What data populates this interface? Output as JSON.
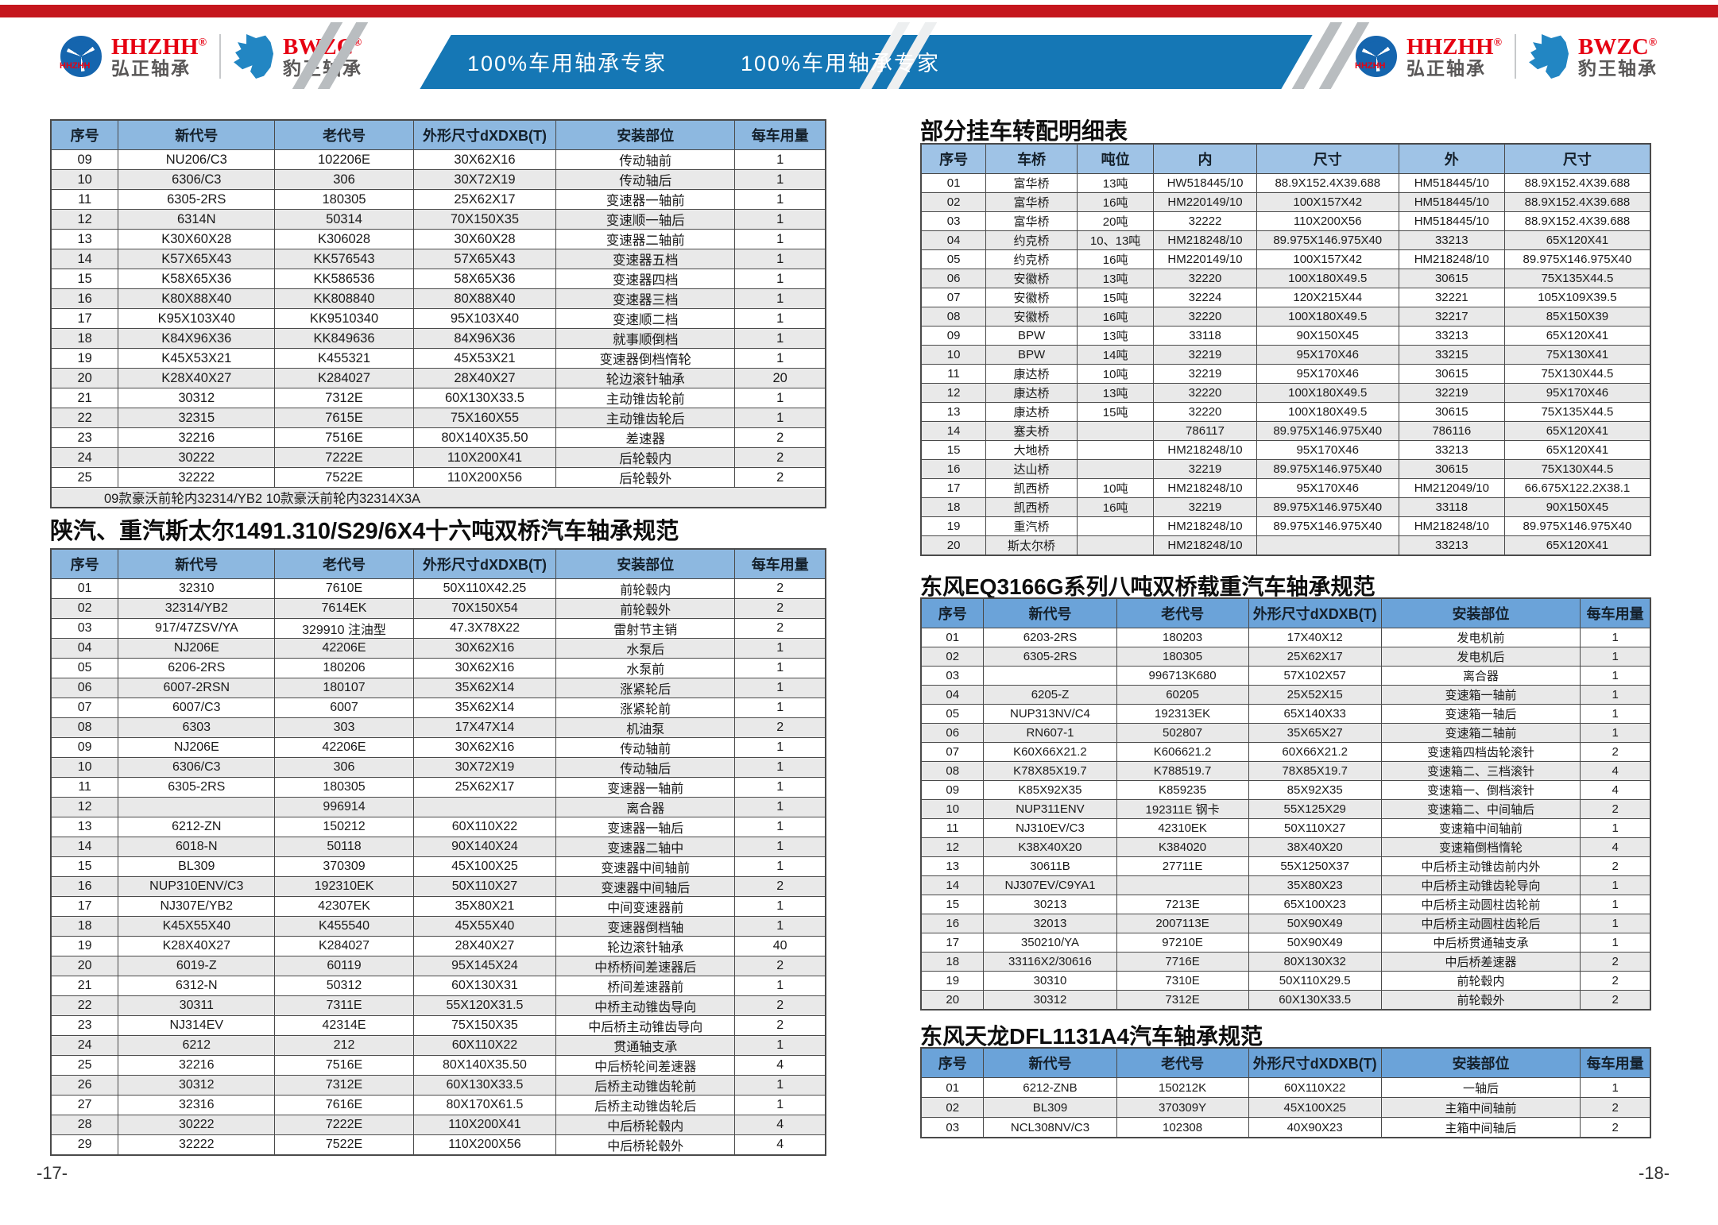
{
  "header": {
    "banner_text_left": "100%车用轴承专家",
    "banner_text_right": "100%车用轴承专家",
    "colors": {
      "red_bar": "#c5161d",
      "banner_blue": "#1577b5",
      "brand_red": "#e60012",
      "brand_gray": "#595757",
      "table_blue_light": "#8db8e0",
      "table_blue_trailer": "#9fc3e6",
      "table_blue_dark": "#6ba3d9"
    },
    "brands": [
      {
        "logo_text": "HHZHH",
        "name_en": "HHZHH",
        "reg": "®",
        "name_cn": "弘正轴承"
      },
      {
        "logo_text": "BWZC",
        "name_en": "BWZC",
        "reg": "®",
        "name_cn": "豹王轴承"
      }
    ]
  },
  "page_left": {
    "page_number": "-17-",
    "section_title": "陕汽、重汽斯太尔1491.310/S29/6X4十六吨双桥汽车轴承规范",
    "table_top": {
      "columns": [
        "序号",
        "新代号",
        "老代号",
        "外形尺寸dXDXB(T)",
        "安装部位",
        "每车用量"
      ],
      "widths": [
        8.7,
        20.2,
        17.9,
        18.4,
        23.1,
        11.7
      ],
      "header_bg": "#8db8e0",
      "footer_note": "09款豪沃前轮内32314/YB2  10款豪沃前轮内32314X3A",
      "rows": [
        [
          "09",
          "NU206/C3",
          "102206E",
          "30X62X16",
          "传动轴前",
          "1"
        ],
        [
          "10",
          "6306/C3",
          "306",
          "30X72X19",
          "传动轴后",
          "1"
        ],
        [
          "11",
          "6305-2RS",
          "180305",
          "25X62X17",
          "变速器一轴前",
          "1"
        ],
        [
          "12",
          "6314N",
          "50314",
          "70X150X35",
          "变速顺一轴后",
          "1"
        ],
        [
          "13",
          "K30X60X28",
          "K306028",
          "30X60X28",
          "变速器二轴前",
          "1"
        ],
        [
          "14",
          "K57X65X43",
          "KK576543",
          "57X65X43",
          "变速器五档",
          "1"
        ],
        [
          "15",
          "K58X65X36",
          "KK586536",
          "58X65X36",
          "变速器四档",
          "1"
        ],
        [
          "16",
          "K80X88X40",
          "KK808840",
          "80X88X40",
          "变速器三档",
          "1"
        ],
        [
          "17",
          "K95X103X40",
          "KK9510340",
          "95X103X40",
          "变速顺二档",
          "1"
        ],
        [
          "18",
          "K84X96X36",
          "KK849636",
          "84X96X36",
          "就事顺倒档",
          "1"
        ],
        [
          "19",
          "K45X53X21",
          "K455321",
          "45X53X21",
          "变速器倒档惰轮",
          "1"
        ],
        [
          "20",
          "K28X40X27",
          "K284027",
          "28X40X27",
          "轮边滚针轴承",
          "20"
        ],
        [
          "21",
          "30312",
          "7312E",
          "60X130X33.5",
          "主动锥齿轮前",
          "1"
        ],
        [
          "22",
          "32315",
          "7615E",
          "75X160X55",
          "主动锥齿轮后",
          "1"
        ],
        [
          "23",
          "32216",
          "7516E",
          "80X140X35.50",
          "差速器",
          "2"
        ],
        [
          "24",
          "30222",
          "7222E",
          "110X200X41",
          "后轮毂内",
          "2"
        ],
        [
          "25",
          "32222",
          "7522E",
          "110X200X56",
          "后轮毂外",
          "2"
        ]
      ]
    },
    "table_main": {
      "columns": [
        "序号",
        "新代号",
        "老代号",
        "外形尺寸dXDXB(T)",
        "安装部位",
        "每车用量"
      ],
      "widths": [
        8.7,
        20.2,
        17.9,
        18.4,
        23.1,
        11.7
      ],
      "header_bg": "#8db8e0",
      "rows": [
        [
          "01",
          "32310",
          "7610E",
          "50X110X42.25",
          "前轮毂内",
          "2"
        ],
        [
          "02",
          "32314/YB2",
          "7614EK",
          "70X150X54",
          "前轮毂外",
          "2"
        ],
        [
          "03",
          "917/47ZSV/YA",
          "329910 注油型",
          "47.3X78X22",
          "雷射节主销",
          "2"
        ],
        [
          "04",
          "NJ206E",
          "42206E",
          "30X62X16",
          "水泵后",
          "1"
        ],
        [
          "05",
          "6206-2RS",
          "180206",
          "30X62X16",
          "水泵前",
          "1"
        ],
        [
          "06",
          "6007-2RSN",
          "180107",
          "35X62X14",
          "涨紧轮后",
          "1"
        ],
        [
          "07",
          "6007/C3",
          "6007",
          "35X62X14",
          "涨紧轮前",
          "1"
        ],
        [
          "08",
          "6303",
          "303",
          "17X47X14",
          "机油泵",
          "2"
        ],
        [
          "09",
          "NJ206E",
          "42206E",
          "30X62X16",
          "传动轴前",
          "1"
        ],
        [
          "10",
          "6306/C3",
          "306",
          "30X72X19",
          "传动轴后",
          "1"
        ],
        [
          "11",
          "6305-2RS",
          "180305",
          "25X62X17",
          "变速器一轴前",
          "1"
        ],
        [
          "12",
          "",
          "996914",
          "",
          "离合器",
          "1"
        ],
        [
          "13",
          "6212-ZN",
          "150212",
          "60X110X22",
          "变速器一轴后",
          "1"
        ],
        [
          "14",
          "6018-N",
          "50118",
          "90X140X24",
          "变速器二轴中",
          "1"
        ],
        [
          "15",
          "BL309",
          "370309",
          "45X100X25",
          "变速器中间轴前",
          "1"
        ],
        [
          "16",
          "NUP310ENV/C3",
          "192310EK",
          "50X110X27",
          "变速器中间轴后",
          "2"
        ],
        [
          "17",
          "NJ307E/YB2",
          "42307EK",
          "35X80X21",
          "中间变速器前",
          "1"
        ],
        [
          "18",
          "K45X55X40",
          "K455540",
          "45X55X40",
          "变速器倒档轴",
          "1"
        ],
        [
          "19",
          "K28X40X27",
          "K284027",
          "28X40X27",
          "轮边滚针轴承",
          "40"
        ],
        [
          "20",
          "6019-Z",
          "60119",
          "95X145X24",
          "中桥桥间差速器后",
          "2"
        ],
        [
          "21",
          "6312-N",
          "50312",
          "60X130X31",
          "桥间差速器前",
          "1"
        ],
        [
          "22",
          "30311",
          "7311E",
          "55X120X31.5",
          "中桥主动锥齿导向",
          "2"
        ],
        [
          "23",
          "NJ314EV",
          "42314E",
          "75X150X35",
          "中后桥主动锥齿导向",
          "2"
        ],
        [
          "24",
          "6212",
          "212",
          "60X110X22",
          "贯通轴支承",
          "1"
        ],
        [
          "25",
          "32216",
          "7516E",
          "80X140X35.50",
          "中后桥轮间差速器",
          "4"
        ],
        [
          "26",
          "30312",
          "7312E",
          "60X130X33.5",
          "后桥主动锥齿轮前",
          "1"
        ],
        [
          "27",
          "32316",
          "7616E",
          "80X170X61.5",
          "后桥主动锥齿轮后",
          "1"
        ],
        [
          "28",
          "30222",
          "7222E",
          "110X200X41",
          "中后桥轮毂内",
          "4"
        ],
        [
          "29",
          "32222",
          "7522E",
          "110X200X56",
          "中后桥轮毂外",
          "4"
        ]
      ]
    }
  },
  "page_right": {
    "page_number": "-18-",
    "trailer_title": "部分挂车转配明细表",
    "trailer_table": {
      "columns": [
        "序号",
        "车桥",
        "吨位",
        "内",
        "尺寸",
        "外",
        "尺寸"
      ],
      "widths": [
        8.9,
        12.5,
        10.5,
        14.1,
        19.5,
        14.5,
        20.0
      ],
      "header_bg": "#9fc3e6",
      "rows": [
        [
          "01",
          "富华桥",
          "13吨",
          "HW518445/10",
          "88.9X152.4X39.688",
          "HM518445/10",
          "88.9X152.4X39.688"
        ],
        [
          "02",
          "富华桥",
          "16吨",
          "HM220149/10",
          "100X157X42",
          "HM518445/10",
          "88.9X152.4X39.688"
        ],
        [
          "03",
          "富华桥",
          "20吨",
          "32222",
          "110X200X56",
          "HM518445/10",
          "88.9X152.4X39.688"
        ],
        [
          "04",
          "约克桥",
          "10、13吨",
          "HM218248/10",
          "89.975X146.975X40",
          "33213",
          "65X120X41"
        ],
        [
          "05",
          "约克桥",
          "16吨",
          "HM220149/10",
          "100X157X42",
          "HM218248/10",
          "89.975X146.975X40"
        ],
        [
          "06",
          "安徽桥",
          "13吨",
          "32220",
          "100X180X49.5",
          "30615",
          "75X135X44.5"
        ],
        [
          "07",
          "安徽桥",
          "15吨",
          "32224",
          "120X215X44",
          "32221",
          "105X109X39.5"
        ],
        [
          "08",
          "安徽桥",
          "16吨",
          "32220",
          "100X180X49.5",
          "32217",
          "85X150X39"
        ],
        [
          "09",
          "BPW",
          "13吨",
          "33118",
          "90X150X45",
          "33213",
          "65X120X41"
        ],
        [
          "10",
          "BPW",
          "14吨",
          "32219",
          "95X170X46",
          "33215",
          "75X130X41"
        ],
        [
          "11",
          "康达桥",
          "10吨",
          "32219",
          "95X170X46",
          "30615",
          "75X130X44.5"
        ],
        [
          "12",
          "康达桥",
          "13吨",
          "32220",
          "100X180X49.5",
          "32219",
          "95X170X46"
        ],
        [
          "13",
          "康达桥",
          "15吨",
          "32220",
          "100X180X49.5",
          "30615",
          "75X135X44.5"
        ],
        [
          "14",
          "塞夫桥",
          "",
          "786117",
          "89.975X146.975X40",
          "786116",
          "65X120X41"
        ],
        [
          "15",
          "大地桥",
          "",
          "HM218248/10",
          "95X170X46",
          "33213",
          "65X120X41"
        ],
        [
          "16",
          "达山桥",
          "",
          "32219",
          "89.975X146.975X40",
          "30615",
          "75X130X44.5"
        ],
        [
          "17",
          "凯西桥",
          "10吨",
          "HM218248/10",
          "95X170X46",
          "HM212049/10",
          "66.675X122.2X38.1"
        ],
        [
          "18",
          "凯西桥",
          "16吨",
          "32219",
          "89.975X146.975X40",
          "33118",
          "90X150X45"
        ],
        [
          "19",
          "重汽桥",
          "",
          "HM218248/10",
          "89.975X146.975X40",
          "HM218248/10",
          "89.975X146.975X40"
        ],
        [
          "20",
          "斯太尔桥",
          "",
          "HM218248/10",
          "",
          "33213",
          "65X120X41"
        ]
      ]
    },
    "eq_title": "东风EQ3166G系列八吨双桥载重汽车轴承规范",
    "eq_table": {
      "columns": [
        "序号",
        "新代号",
        "老代号",
        "外形尺寸dXDXB(T)",
        "安装部位",
        "每车用量"
      ],
      "widths": [
        8.6,
        18.2,
        18.1,
        18.2,
        27.3,
        9.6
      ],
      "header_bg": "#6ba3d9",
      "rows": [
        [
          "01",
          "6203-2RS",
          "180203",
          "17X40X12",
          "发电机前",
          "1"
        ],
        [
          "02",
          "6305-2RS",
          "180305",
          "25X62X17",
          "发电机后",
          "1"
        ],
        [
          "03",
          "",
          "996713K680",
          "57X102X57",
          "离合器",
          "1"
        ],
        [
          "04",
          "6205-Z",
          "60205",
          "25X52X15",
          "变速箱一轴前",
          "1"
        ],
        [
          "05",
          "NUP313NV/C4",
          "192313EK",
          "65X140X33",
          "变速箱一轴后",
          "1"
        ],
        [
          "06",
          "RN607-1",
          "502807",
          "35X65X27",
          "变速箱二轴前",
          "1"
        ],
        [
          "07",
          "K60X66X21.2",
          "K606621.2",
          "60X66X21.2",
          "变速箱四档齿轮滚针",
          "2"
        ],
        [
          "08",
          "K78X85X19.7",
          "K788519.7",
          "78X85X19.7",
          "变速箱二、三档滚针",
          "4"
        ],
        [
          "09",
          "K85X92X35",
          "K859235",
          "85X92X35",
          "变速箱一、倒档滚针",
          "4"
        ],
        [
          "10",
          "NUP311ENV",
          "192311E 钢卡",
          "55X125X29",
          "变速箱二、中间轴后",
          "2"
        ],
        [
          "11",
          "NJ310EV/C3",
          "42310EK",
          "50X110X27",
          "变速箱中间轴前",
          "1"
        ],
        [
          "12",
          "K38X40X20",
          "K384020",
          "38X40X20",
          "变速箱倒档惰轮",
          "4"
        ],
        [
          "13",
          "30611B",
          "27711E",
          "55X1250X37",
          "中后桥主动锥齿前内外",
          "2"
        ],
        [
          "14",
          "NJ307EV/C9YA1",
          "",
          "35X80X23",
          "中后桥主动锥齿轮导向",
          "1"
        ],
        [
          "15",
          "30213",
          "7213E",
          "65X100X23",
          "中后桥主动圆柱齿轮前",
          "1"
        ],
        [
          "16",
          "32013",
          "2007113E",
          "50X90X49",
          "中后桥主动圆柱齿轮后",
          "1"
        ],
        [
          "17",
          "350210/YA",
          "97210E",
          "50X90X49",
          "中后桥贯通轴支承",
          "1"
        ],
        [
          "18",
          "33116X2/30616",
          "7716E",
          "80X130X32",
          "中后桥差速器",
          "2"
        ],
        [
          "19",
          "30310",
          "7310E",
          "50X110X29.5",
          "前轮毂内",
          "2"
        ],
        [
          "20",
          "30312",
          "7312E",
          "60X130X33.5",
          "前轮毂外",
          "2"
        ]
      ]
    },
    "tianlong_title": "东风天龙DFL1131A4汽车轴承规范",
    "tianlong_table": {
      "columns": [
        "序号",
        "新代号",
        "老代号",
        "外形尺寸dXDXB(T)",
        "安装部位",
        "每车用量"
      ],
      "widths": [
        8.6,
        18.2,
        18.1,
        18.2,
        27.3,
        9.6
      ],
      "header_bg": "#6ba3d9",
      "rows": [
        [
          "01",
          "6212-ZNB",
          "150212K",
          "60X110X22",
          "一轴后",
          "1"
        ],
        [
          "02",
          "BL309",
          "370309Y",
          "45X100X25",
          "主箱中间轴前",
          "2"
        ],
        [
          "03",
          "NCL308NV/C3",
          "102308",
          "40X90X23",
          "主箱中间轴后",
          "2"
        ]
      ]
    }
  }
}
